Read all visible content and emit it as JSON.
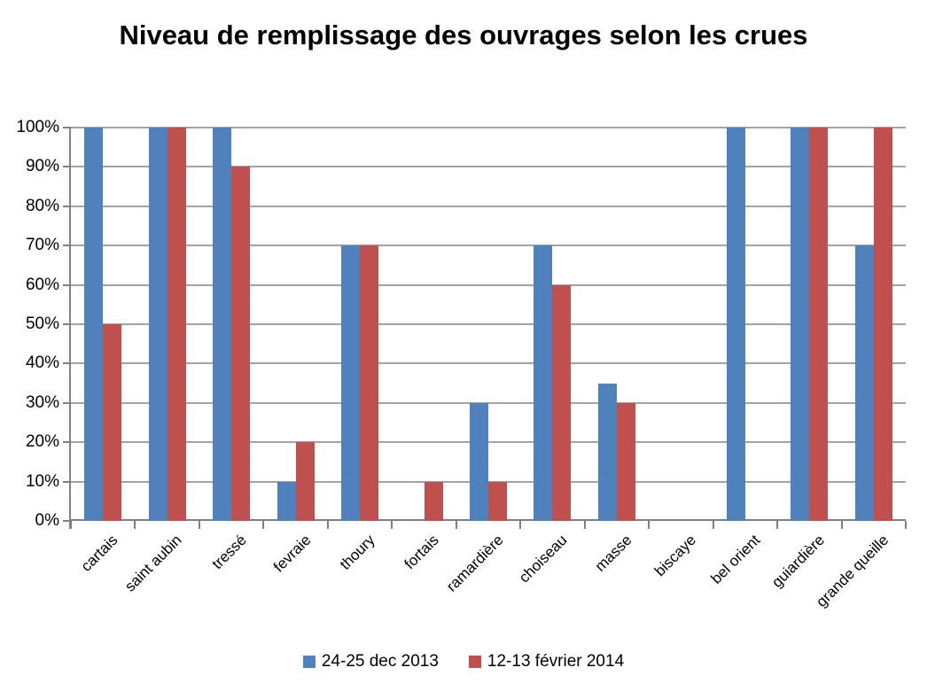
{
  "title": "Niveau de remplissage des ouvrages selon les crues",
  "chart_data": {
    "type": "bar",
    "title": "Niveau de remplissage des ouvrages selon les crues",
    "categories": [
      "cartais",
      "saint aubin",
      "tressé",
      "fevraie",
      "thoury",
      "fortais",
      "ramardière",
      "choiseau",
      "masse",
      "biscaye",
      "bel orient",
      "guiardière",
      "grande queille"
    ],
    "series": [
      {
        "name": "24-25 dec 2013",
        "color": "#4F81BD",
        "values": [
          100,
          100,
          100,
          10,
          70,
          0,
          30,
          70,
          35,
          0,
          100,
          100,
          70
        ]
      },
      {
        "name": "12-13 février 2014",
        "color": "#C0504D",
        "values": [
          50,
          100,
          90,
          20,
          70,
          10,
          10,
          60,
          30,
          0,
          0,
          100,
          100
        ]
      }
    ],
    "y_ticks": [
      "0%",
      "10%",
      "20%",
      "30%",
      "40%",
      "50%",
      "60%",
      "70%",
      "80%",
      "90%",
      "100%"
    ],
    "ylim": [
      0,
      100
    ],
    "xlabel": "",
    "ylabel": "",
    "grid": true,
    "legend_position": "bottom"
  },
  "colors": {
    "series1": "#4F81BD",
    "series2": "#C0504D",
    "gridline": "#A3A3A3",
    "axis": "#808080",
    "text": "#000000",
    "background": "#FFFFFF"
  }
}
